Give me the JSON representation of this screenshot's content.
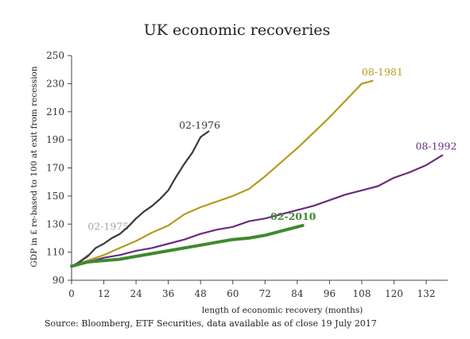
{
  "chart_data": {
    "type": "line",
    "title": "UK economic recoveries",
    "xlabel": "length of economic recovery (months)",
    "ylabel": "GDP in £ re-based to 100 at exit from recession",
    "source": "Source: Bloomberg, ETF Securities, data available as of close 19 July 2017",
    "xlim": [
      0,
      140
    ],
    "ylim": [
      90,
      250
    ],
    "xticks": [
      0,
      12,
      24,
      36,
      48,
      60,
      72,
      84,
      96,
      108,
      120,
      132
    ],
    "yticks": [
      90,
      110,
      130,
      150,
      170,
      190,
      210,
      230,
      250
    ],
    "grid": false,
    "series": [
      {
        "name": "02-1975",
        "color": "#a6a6a6",
        "width": 2,
        "label_pos": [
          6,
          126
        ],
        "points": [
          [
            0,
            100
          ],
          [
            2,
            102
          ],
          [
            4,
            105
          ],
          [
            6,
            108
          ]
        ]
      },
      {
        "name": "02-1976",
        "color": "#3a3a3a",
        "width": 2.2,
        "label_pos": [
          40,
          198
        ],
        "points": [
          [
            0,
            100
          ],
          [
            3,
            103
          ],
          [
            6,
            107
          ],
          [
            9,
            113
          ],
          [
            12,
            116
          ],
          [
            15,
            120
          ],
          [
            18,
            123
          ],
          [
            21,
            128
          ],
          [
            24,
            134
          ],
          [
            27,
            139
          ],
          [
            30,
            143
          ],
          [
            33,
            148
          ],
          [
            36,
            154
          ],
          [
            39,
            164
          ],
          [
            42,
            173
          ],
          [
            45,
            181
          ],
          [
            48,
            192
          ],
          [
            51,
            196
          ]
        ]
      },
      {
        "name": "08-1981",
        "color": "#b59a1e",
        "width": 2.2,
        "label_pos": [
          108,
          236
        ],
        "points": [
          [
            0,
            100
          ],
          [
            6,
            104
          ],
          [
            12,
            108
          ],
          [
            18,
            113
          ],
          [
            24,
            118
          ],
          [
            30,
            124
          ],
          [
            36,
            129
          ],
          [
            42,
            137
          ],
          [
            48,
            142
          ],
          [
            54,
            146
          ],
          [
            60,
            150
          ],
          [
            66,
            155
          ],
          [
            72,
            164
          ],
          [
            78,
            174
          ],
          [
            84,
            184
          ],
          [
            90,
            195
          ],
          [
            96,
            206
          ],
          [
            102,
            218
          ],
          [
            106,
            226
          ],
          [
            108,
            230
          ],
          [
            112,
            232
          ]
        ]
      },
      {
        "name": "08-1992",
        "color": "#6a2c80",
        "width": 2.2,
        "label_pos": [
          128,
          183
        ],
        "points": [
          [
            0,
            100
          ],
          [
            6,
            103
          ],
          [
            12,
            106
          ],
          [
            18,
            108
          ],
          [
            24,
            111
          ],
          [
            30,
            113
          ],
          [
            36,
            116
          ],
          [
            42,
            119
          ],
          [
            48,
            123
          ],
          [
            54,
            126
          ],
          [
            60,
            128
          ],
          [
            66,
            132
          ],
          [
            72,
            134
          ],
          [
            78,
            137
          ],
          [
            84,
            140
          ],
          [
            90,
            143
          ],
          [
            96,
            147
          ],
          [
            102,
            151
          ],
          [
            108,
            154
          ],
          [
            114,
            157
          ],
          [
            120,
            163
          ],
          [
            126,
            167
          ],
          [
            132,
            172
          ],
          [
            138,
            179
          ]
        ]
      },
      {
        "name": "02-2010",
        "color": "#3f8a2e",
        "width": 4,
        "label_pos": [
          74,
          133
        ],
        "points": [
          [
            0,
            100
          ],
          [
            6,
            103
          ],
          [
            12,
            104
          ],
          [
            18,
            105
          ],
          [
            24,
            107
          ],
          [
            30,
            109
          ],
          [
            36,
            111
          ],
          [
            42,
            113
          ],
          [
            48,
            115
          ],
          [
            54,
            117
          ],
          [
            60,
            119
          ],
          [
            66,
            120
          ],
          [
            72,
            122
          ],
          [
            78,
            125
          ],
          [
            84,
            128
          ],
          [
            86,
            129
          ]
        ]
      }
    ]
  }
}
